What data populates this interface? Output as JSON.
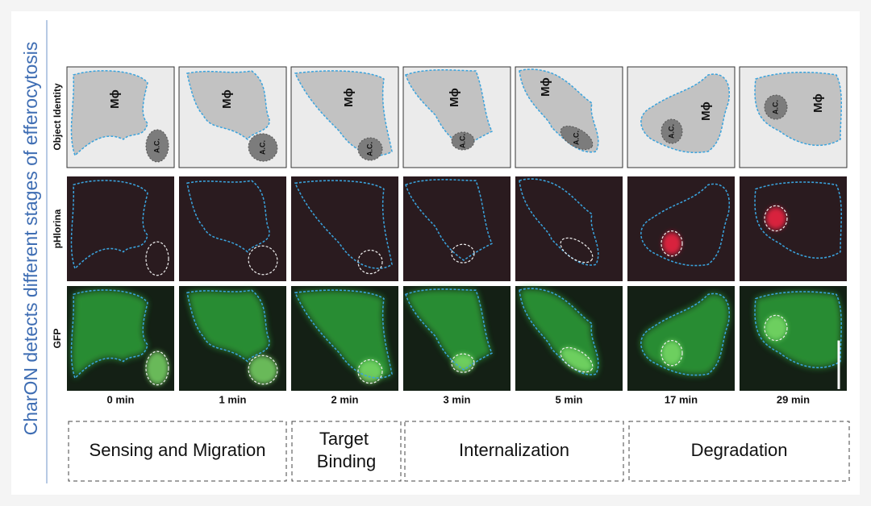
{
  "figure_title": "CharON detects different stages of efferocytosis",
  "row_labels": [
    "Object Identity",
    "pHlorina",
    "GFP"
  ],
  "panels": [
    {
      "time": "0 min",
      "cell": "Mϕ",
      "target": "A.C."
    },
    {
      "time": "1 min",
      "cell": "Mϕ",
      "target": "A.C."
    },
    {
      "time": "2 min",
      "cell": "Mϕ",
      "target": "A.C."
    },
    {
      "time": "3 min",
      "cell": "Mϕ",
      "target": "A.C."
    },
    {
      "time": "5 min",
      "cell": "Mϕ",
      "target": "A.C."
    },
    {
      "time": "17 min",
      "cell": "Mϕ",
      "target": "A.C."
    },
    {
      "time": "29 min",
      "cell": "Mϕ",
      "target": "A.C."
    }
  ],
  "stages": [
    "Sensing and Migration",
    "Target Binding",
    "Internalization",
    "Degradation"
  ]
}
